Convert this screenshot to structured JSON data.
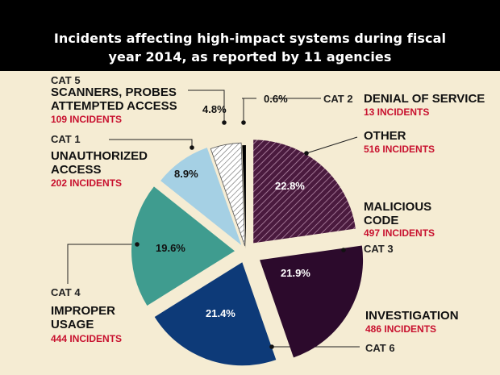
{
  "header": {
    "title_line1": "Incidents affecting high-impact systems during fiscal",
    "title_line2": "year 2014, as reported by 11 agencies"
  },
  "colors": {
    "background": "#f5ecd3",
    "other": "#4a1a3e",
    "malicious_code": "#2c0a2c",
    "investigation": "#0d3a78",
    "improper_usage": "#3f9c8f",
    "unauthorized_access": "#a5d0e4",
    "scanners": "#ffffff",
    "denial_of_service": "#000000",
    "incident_text": "#c8102e"
  },
  "chart_data": {
    "type": "pie",
    "title": "Incidents affecting high-impact systems during fiscal year 2014, as reported by 11 agencies",
    "slices": [
      {
        "key": "other",
        "cat": "",
        "name": "OTHER",
        "incidents": "516 INCIDENTS",
        "value": 516,
        "percent": "22.8%",
        "pattern": "hatch-dark"
      },
      {
        "key": "malicious",
        "cat": "CAT 3",
        "name": "MALICIOUS CODE",
        "incidents": "497 INCIDENTS",
        "value": 497,
        "percent": "21.9%",
        "pattern": "solid"
      },
      {
        "key": "investigation",
        "cat": "CAT 6",
        "name": "INVESTIGATION",
        "incidents": "486 INCIDENTS",
        "value": 486,
        "percent": "21.4%",
        "pattern": "solid"
      },
      {
        "key": "improper",
        "cat": "CAT 4",
        "name": "IMPROPER USAGE",
        "incidents": "444 INCIDENTS",
        "value": 444,
        "percent": "19.6%",
        "pattern": "solid"
      },
      {
        "key": "unauthorized",
        "cat": "CAT 1",
        "name": "UNAUTHORIZED ACCESS",
        "incidents": "202 INCIDENTS",
        "value": 202,
        "percent": "8.9%",
        "pattern": "solid"
      },
      {
        "key": "scanners",
        "cat": "CAT 5",
        "name": "SCANNERS, PROBES ATTEMPTED ACCESS",
        "incidents": "109 INCIDENTS",
        "value": 109,
        "percent": "4.8%",
        "pattern": "hatch-light"
      },
      {
        "key": "dos",
        "cat": "CAT 2",
        "name": "DENIAL OF SERVICE",
        "incidents": "13 INCIDENTS",
        "value": 13,
        "percent": "0.6%",
        "pattern": "solid"
      }
    ]
  }
}
